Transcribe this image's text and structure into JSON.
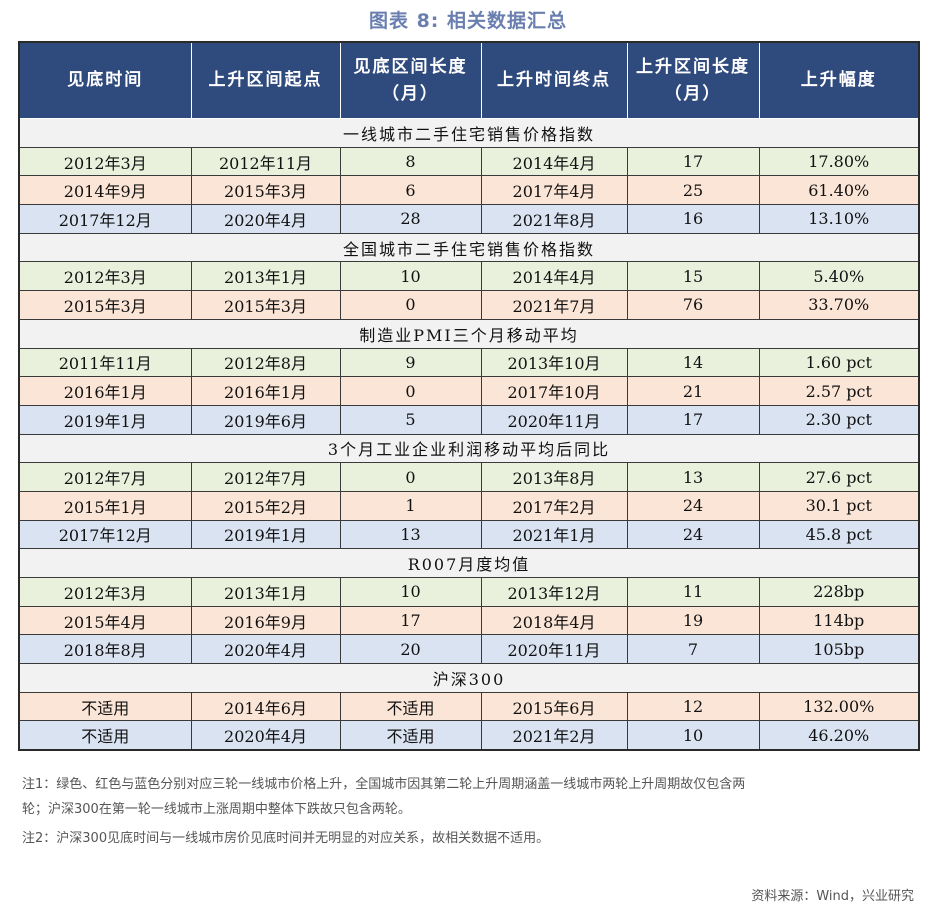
{
  "title": "图表 8:    相关数据汇总",
  "headers": [
    "见底时间",
    "上升区间起点",
    "见底区间长度（月）",
    "上升时间终点",
    "上升区间长度（月）",
    "上升幅度"
  ],
  "sections": [
    {
      "name": "一线城市二手住宅销售价格指数",
      "rows": [
        [
          "2012年3月",
          "2012年11月",
          "8",
          "2014年4月",
          "17",
          "17.80%"
        ],
        [
          "2014年9月",
          "2015年3月",
          "6",
          "2017年4月",
          "25",
          "61.40%"
        ],
        [
          "2017年12月",
          "2020年4月",
          "28",
          "2021年8月",
          "16",
          "13.10%"
        ]
      ]
    },
    {
      "name": "全国城市二手住宅销售价格指数",
      "rows": [
        [
          "2012年3月",
          "2013年1月",
          "10",
          "2014年4月",
          "15",
          "5.40%"
        ],
        [
          "2015年3月",
          "2015年3月",
          "0",
          "2021年7月",
          "76",
          "33.70%"
        ]
      ]
    },
    {
      "name": "制造业PMI三个月移动平均",
      "rows": [
        [
          "2011年11月",
          "2012年8月",
          "9",
          "2013年10月",
          "14",
          "1.60 pct"
        ],
        [
          "2016年1月",
          "2016年1月",
          "0",
          "2017年10月",
          "21",
          "2.57 pct"
        ],
        [
          "2019年1月",
          "2019年6月",
          "5",
          "2020年11月",
          "17",
          "2.30 pct"
        ]
      ]
    },
    {
      "name": "3个月工业企业利润移动平均后同比",
      "rows": [
        [
          "2012年7月",
          "2012年7月",
          "0",
          "2013年8月",
          "13",
          "27.6 pct"
        ],
        [
          "2015年1月",
          "2015年2月",
          "1",
          "2017年2月",
          "24",
          "30.1 pct"
        ],
        [
          "2017年12月",
          "2019年1月",
          "13",
          "2021年1月",
          "24",
          "45.8 pct"
        ]
      ]
    },
    {
      "name": "R007月度均值",
      "rows": [
        [
          "2012年3月",
          "2013年1月",
          "10",
          "2013年12月",
          "11",
          "228bp"
        ],
        [
          "2015年4月",
          "2016年9月",
          "17",
          "2018年4月",
          "19",
          "114bp"
        ],
        [
          "2018年8月",
          "2020年4月",
          "20",
          "2020年11月",
          "7",
          "105bp"
        ]
      ]
    },
    {
      "name": "沪深300",
      "rows": [
        [
          "不适用",
          "2014年6月",
          "不适用",
          "2015年6月",
          "12",
          "132.00%"
        ],
        [
          "不适用",
          "2020年4月",
          "不适用",
          "2021年2月",
          "10",
          "46.20%"
        ]
      ]
    }
  ],
  "notes": [
    "注1：绿色、红色与蓝色分别对应三轮一线城市价格上升，全国城市因其第二轮上升周期涵盖一线城市两轮上升周期故仅包含两",
    "轮；沪深300在第一轮一线城市上涨周期中整体下跌故只包含两轮。",
    "注2：沪深300见底时间与一线城市房价见底时间并无明显的对应关系，故相关数据不适用。"
  ],
  "source": "资料来源：Wind，兴业研究",
  "colors": {
    "header": "#2f4a7d",
    "green_row": "#e9f1dd",
    "red_row": "#fbe5d6",
    "blue_row": "#dae3f1",
    "section_row": "#f2f2f2",
    "title": "#6a7fb0"
  }
}
